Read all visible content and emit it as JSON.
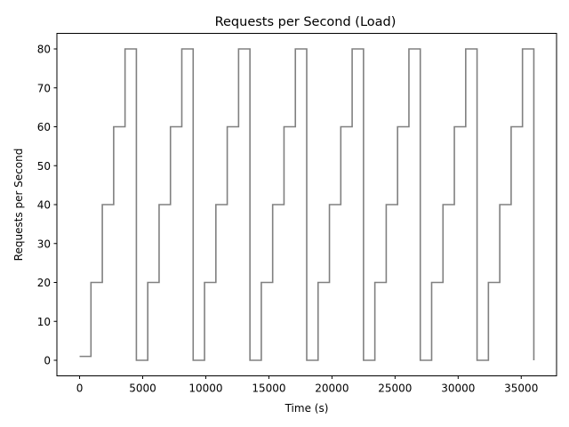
{
  "chart_data": {
    "type": "line",
    "title": "Requests per Second (Load)",
    "xlabel": "Time (s)",
    "ylabel": "Requests per Second",
    "xlim": [
      -1800,
      37800
    ],
    "ylim": [
      -4,
      84
    ],
    "xticks": [
      0,
      5000,
      10000,
      15000,
      20000,
      25000,
      30000,
      35000
    ],
    "yticks": [
      0,
      10,
      20,
      30,
      40,
      50,
      60,
      70,
      80
    ],
    "step_mode": "post",
    "grid": false,
    "series": [
      {
        "color": "#808080",
        "x": [
          0,
          900,
          1800,
          2700,
          3600,
          4500,
          5400,
          6300,
          7200,
          8100,
          9000,
          9900,
          10800,
          11700,
          12600,
          13500,
          14400,
          15300,
          16200,
          17100,
          18000,
          18900,
          19800,
          20700,
          21600,
          22500,
          23400,
          24300,
          25200,
          26100,
          27000,
          27900,
          28800,
          29700,
          30600,
          31500,
          32400,
          33300,
          34200,
          35100,
          36000
        ],
        "y": [
          1,
          20,
          40,
          60,
          80,
          0,
          20,
          40,
          60,
          80,
          0,
          20,
          40,
          60,
          80,
          0,
          20,
          40,
          60,
          80,
          0,
          20,
          40,
          60,
          80,
          0,
          20,
          40,
          60,
          80,
          0,
          20,
          40,
          60,
          80,
          0,
          20,
          40,
          60,
          80,
          0
        ]
      }
    ]
  }
}
